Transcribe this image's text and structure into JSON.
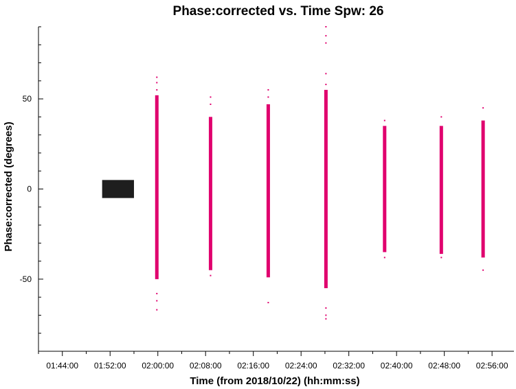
{
  "chart_data": {
    "type": "scatter",
    "title": "Phase:corrected vs. Time Spw: 26",
    "xlabel": "Time (from 2018/10/22) (hh:mm:ss)",
    "ylabel": "Phase:corrected (degrees)",
    "xlim": [
      "01:40:00",
      "02:59:40"
    ],
    "ylim": [
      -90,
      90
    ],
    "x_ticks": [
      "01:44:00",
      "01:52:00",
      "02:00:00",
      "02:08:00",
      "02:16:00",
      "02:24:00",
      "02:32:00",
      "02:40:00",
      "02:48:00",
      "02:56:00"
    ],
    "y_ticks": [
      -50,
      0,
      50
    ],
    "grid": false,
    "series": [
      {
        "color": "#1e1e1e",
        "scans": [
          {
            "time_start": "01:50:40",
            "time_end": "01:56:00",
            "phase_min": -5,
            "phase_max": 5
          }
        ]
      },
      {
        "color": "#e0006e",
        "scans": [
          {
            "time": "01:59:50",
            "phase_min": -50,
            "phase_max": 52,
            "outliers": [
              62,
              59,
              55,
              -58,
              -62,
              -67
            ]
          },
          {
            "time": "02:08:50",
            "phase_min": -45,
            "phase_max": 40,
            "outliers": [
              51,
              47,
              -48
            ]
          },
          {
            "time": "02:18:30",
            "phase_min": -49,
            "phase_max": 47,
            "outliers": [
              55,
              51,
              -63
            ]
          },
          {
            "time": "02:28:10",
            "phase_min": -55,
            "phase_max": 55,
            "outliers": [
              90,
              85,
              81,
              64,
              58,
              -66,
              -70,
              -72
            ]
          },
          {
            "time": "02:38:00",
            "phase_min": -35,
            "phase_max": 35,
            "outliers": [
              38,
              -38
            ]
          },
          {
            "time": "02:47:30",
            "phase_min": -36,
            "phase_max": 35,
            "outliers": [
              40,
              -38
            ]
          },
          {
            "time": "02:54:30",
            "phase_min": -38,
            "phase_max": 38,
            "outliers": [
              45,
              -45
            ]
          }
        ]
      }
    ]
  }
}
